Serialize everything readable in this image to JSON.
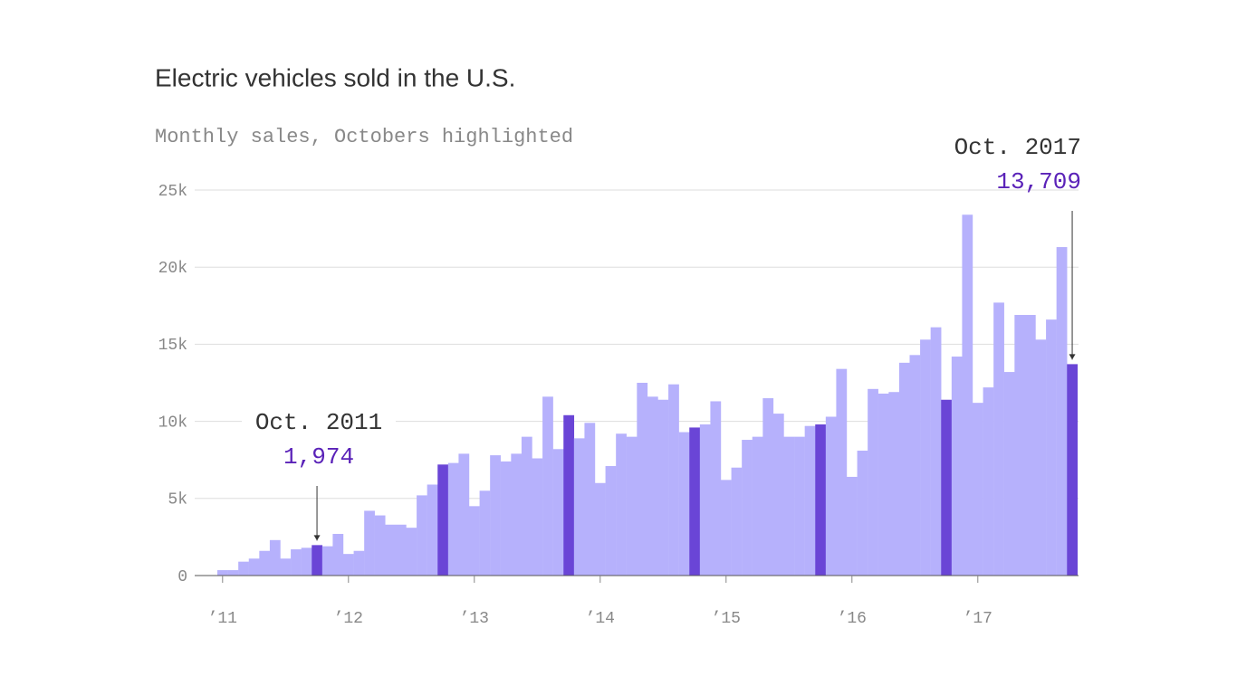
{
  "chart_data": {
    "type": "bar",
    "title": "Electric vehicles sold in the U.S.",
    "subtitle": "Monthly sales, Octobers highlighted",
    "categories": [
      null,
      null,
      null,
      null,
      null,
      null,
      null,
      null,
      null,
      null,
      null,
      null,
      null,
      null,
      null,
      null,
      null,
      null,
      null,
      null,
      null,
      null,
      null,
      null,
      null,
      null,
      null,
      null,
      null,
      null,
      null,
      null,
      null,
      null,
      null,
      null,
      null,
      null,
      null,
      null,
      null,
      null,
      null,
      null,
      null,
      null,
      null,
      null,
      null,
      null,
      null,
      null,
      null,
      null,
      null,
      null,
      null,
      null,
      null,
      null,
      null,
      null,
      null,
      null,
      null,
      null,
      null,
      null,
      null,
      null,
      null,
      null,
      null,
      null,
      null,
      null,
      null,
      null,
      null,
      null,
      null,
      null
    ],
    "values": [
      350,
      350,
      900,
      1100,
      1600,
      2300,
      1100,
      1700,
      1800,
      1974,
      1900,
      2700,
      1400,
      1600,
      4200,
      3900,
      3300,
      3300,
      3100,
      5200,
      5900,
      7200,
      7300,
      7900,
      4500,
      5500,
      7800,
      7400,
      7900,
      9000,
      7600,
      11600,
      8200,
      10400,
      8900,
      9900,
      6000,
      7100,
      9200,
      9000,
      12500,
      11600,
      11400,
      12400,
      9300,
      9600,
      9800,
      11300,
      6200,
      7000,
      8800,
      9000,
      11500,
      10500,
      9000,
      9000,
      9700,
      9800,
      10300,
      13400,
      6400,
      8100,
      12100,
      11800,
      11900,
      13800,
      14300,
      15300,
      16100,
      11400,
      14200,
      23400,
      11200,
      12200,
      17700,
      13200,
      16900,
      16900,
      15300,
      16600,
      21300,
      13709
    ],
    "color": "#b6b1fc",
    "highlight_color": "#6a45d6",
    "highlighted": [
      9,
      21,
      33,
      45,
      57,
      69,
      81
    ],
    "ylim": [
      0,
      25000
    ],
    "yticks": [
      0,
      {
        "value": 5000,
        "label": "5k"
      },
      {
        "value": 10000,
        "label": "10k"
      },
      {
        "value": 15000,
        "label": "15k"
      },
      {
        "value": 20000,
        "label": "20k"
      },
      {
        "value": 25000,
        "label": "25k"
      }
    ],
    "xticks": [
      {
        "value": 0,
        "label": "’11"
      },
      {
        "value": 12,
        "label": "’12"
      },
      {
        "value": 24,
        "label": "’13"
      },
      {
        "value": 36,
        "label": "’14"
      },
      {
        "value": 48,
        "label": "’15"
      },
      {
        "value": 60,
        "label": "’16"
      },
      {
        "value": 72,
        "label": "’17"
      }
    ],
    "grid": true,
    "annotations": [
      {
        "label": "Oct. 2011",
        "value_label": "1,974",
        "index": 9
      },
      {
        "label": "Oct. 2017",
        "value_label": "13,709",
        "index": 81
      }
    ]
  }
}
